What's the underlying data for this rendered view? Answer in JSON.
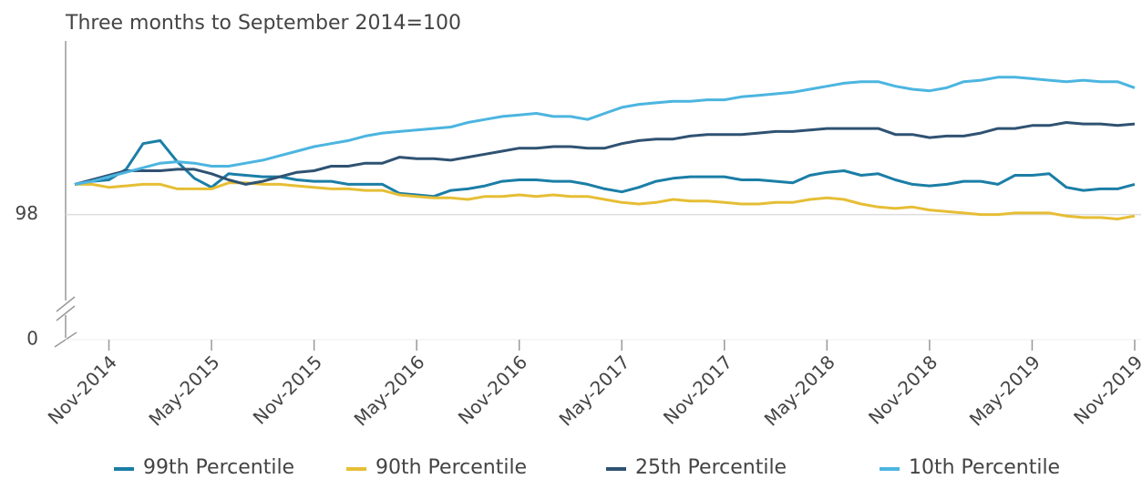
{
  "chart_data": {
    "type": "line",
    "title": "Three months to September 2014=100",
    "categories": [
      null,
      null,
      "Nov-2014",
      null,
      null,
      null,
      null,
      null,
      "May-2015",
      null,
      null,
      null,
      null,
      null,
      "Nov-2015",
      null,
      null,
      null,
      null,
      null,
      "May-2016",
      null,
      null,
      null,
      null,
      null,
      "Nov-2016",
      null,
      null,
      null,
      null,
      null,
      "May-2017",
      null,
      null,
      null,
      null,
      null,
      "Nov-2017",
      null,
      null,
      null,
      null,
      null,
      "May-2018",
      null,
      null,
      null,
      null,
      null,
      "Nov-2018",
      null,
      null,
      null,
      null,
      null,
      "May-2019",
      null,
      null,
      null,
      null,
      null,
      "Nov-2019"
    ],
    "series": [
      {
        "name": "99th Percentile",
        "color": "#1b7ea6",
        "values": [
          100,
          100.2,
          100.3,
          101.0,
          102.7,
          102.9,
          101.5,
          100.4,
          99.8,
          100.7,
          100.6,
          100.5,
          100.5,
          100.3,
          100.2,
          100.2,
          100.0,
          100.0,
          100.0,
          99.4,
          99.3,
          99.2,
          99.6,
          99.7,
          99.9,
          100.2,
          100.3,
          100.3,
          100.2,
          100.2,
          100.0,
          99.7,
          99.5,
          99.8,
          100.2,
          100.4,
          100.5,
          100.5,
          100.5,
          100.3,
          100.3,
          100.2,
          100.1,
          100.6,
          100.8,
          100.9,
          100.6,
          100.7,
          100.3,
          100.0,
          99.9,
          100.0,
          100.2,
          100.2,
          100.0,
          100.6,
          100.6,
          100.7,
          99.8,
          99.6,
          99.7,
          99.7,
          100.0
        ]
      },
      {
        "name": "90th Percentile",
        "color": "#e6be35",
        "values": [
          100,
          100.0,
          99.8,
          99.9,
          100.0,
          100.0,
          99.7,
          99.7,
          99.7,
          100.1,
          100.1,
          100.0,
          100.0,
          99.9,
          99.8,
          99.7,
          99.7,
          99.6,
          99.6,
          99.3,
          99.2,
          99.1,
          99.1,
          99.0,
          99.2,
          99.2,
          99.3,
          99.2,
          99.3,
          99.2,
          99.2,
          99.0,
          98.8,
          98.7,
          98.8,
          99.0,
          98.9,
          98.9,
          98.8,
          98.7,
          98.7,
          98.8,
          98.8,
          99.0,
          99.1,
          99.0,
          98.7,
          98.5,
          98.4,
          98.5,
          98.3,
          98.2,
          98.1,
          98.0,
          98.0,
          98.1,
          98.1,
          98.1,
          97.9,
          97.8,
          97.8,
          97.7,
          97.9
        ]
      },
      {
        "name": "25th Percentile",
        "color": "#2f5272",
        "values": [
          100,
          100.3,
          100.6,
          100.9,
          100.9,
          100.9,
          101.0,
          101.0,
          100.7,
          100.3,
          100.0,
          100.2,
          100.5,
          100.8,
          100.9,
          101.2,
          101.2,
          101.4,
          101.4,
          101.8,
          101.7,
          101.7,
          101.6,
          101.8,
          102.0,
          102.2,
          102.4,
          102.4,
          102.5,
          102.5,
          102.4,
          102.4,
          102.7,
          102.9,
          103.0,
          103.0,
          103.2,
          103.3,
          103.3,
          103.3,
          103.4,
          103.5,
          103.5,
          103.6,
          103.7,
          103.7,
          103.7,
          103.7,
          103.3,
          103.3,
          103.1,
          103.2,
          103.2,
          103.4,
          103.7,
          103.7,
          103.9,
          103.9,
          104.1,
          104.0,
          104.0,
          103.9,
          104.0
        ]
      },
      {
        "name": "10th Percentile",
        "color": "#4cb5e0",
        "values": [
          100,
          100.2,
          100.5,
          100.8,
          101.1,
          101.4,
          101.5,
          101.4,
          101.2,
          101.2,
          101.4,
          101.6,
          101.9,
          102.2,
          102.5,
          102.7,
          102.9,
          103.2,
          103.4,
          103.5,
          103.6,
          103.7,
          103.8,
          104.1,
          104.3,
          104.5,
          104.6,
          104.7,
          104.5,
          104.5,
          104.3,
          104.7,
          105.1,
          105.3,
          105.4,
          105.5,
          105.5,
          105.6,
          105.6,
          105.8,
          105.9,
          106.0,
          106.1,
          106.3,
          106.5,
          106.7,
          106.8,
          106.8,
          106.5,
          106.3,
          106.2,
          106.4,
          106.8,
          106.9,
          107.1,
          107.1,
          107.0,
          106.9,
          106.8,
          106.9,
          106.8,
          106.8,
          106.4
        ]
      }
    ],
    "ylim": [
      92,
      109.5
    ],
    "yticks": [
      0,
      98
    ],
    "axis_break": true,
    "grid": true,
    "legend": "bottom"
  }
}
